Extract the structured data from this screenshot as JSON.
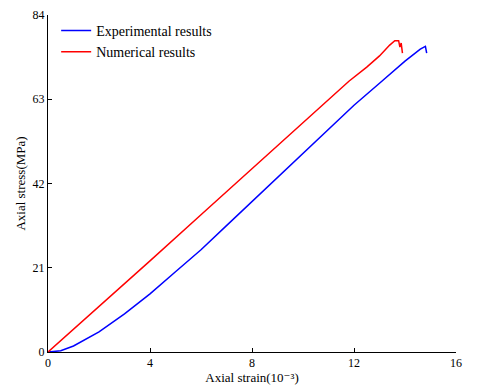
{
  "chart_data": {
    "type": "line",
    "x_label": "Axial strain(10⁻³)",
    "y_label": "Axial stress(MPa)",
    "xlim": [
      0,
      16
    ],
    "xticks": [
      0,
      4,
      8,
      12,
      16
    ],
    "ylim": [
      0,
      84
    ],
    "yticks": [
      0,
      21,
      42,
      63,
      84
    ],
    "grid": false,
    "legend": "top-left",
    "series": [
      {
        "name": "Experimental results",
        "color": "#0000ff",
        "x": [
          0,
          0.5,
          1,
          2,
          3,
          4,
          5,
          6,
          7,
          8,
          9,
          10,
          11,
          12,
          13,
          14,
          14.6,
          14.8,
          14.85
        ],
        "values": [
          0,
          0.3,
          1.5,
          5,
          9.5,
          14.5,
          20,
          25.5,
          31.5,
          37.5,
          43.5,
          49.5,
          55.5,
          61.5,
          67,
          72.5,
          75.5,
          76.2,
          74.5
        ]
      },
      {
        "name": "Numerical results",
        "color": "#ff0000",
        "x": [
          0,
          2,
          4,
          6,
          8,
          10,
          11.8,
          12.5,
          13,
          13.4,
          13.6,
          13.75,
          13.8,
          13.85,
          13.9
        ],
        "values": [
          0,
          11.3,
          22.7,
          34.2,
          45.7,
          57.2,
          67.5,
          71,
          73.8,
          76.5,
          77.6,
          77.6,
          76,
          77,
          74.5
        ]
      }
    ]
  }
}
